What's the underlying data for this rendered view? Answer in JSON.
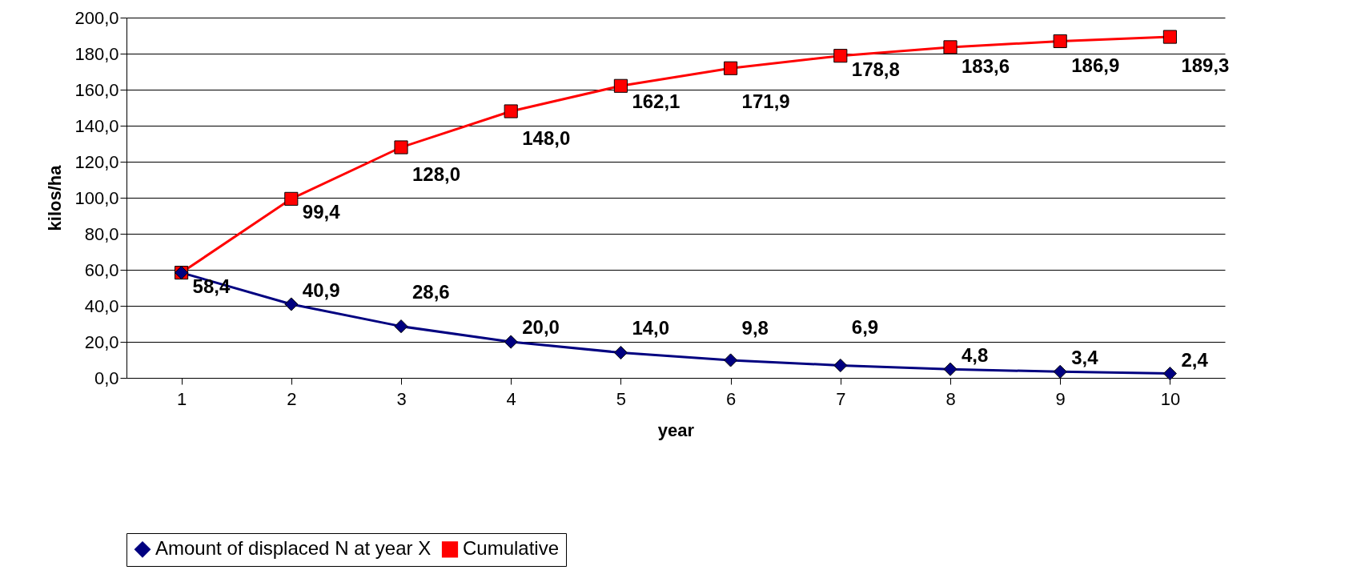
{
  "chart_data": {
    "type": "line",
    "xlabel": "year",
    "ylabel": "kilos/ha",
    "categories": [
      "1",
      "2",
      "3",
      "4",
      "5",
      "6",
      "7",
      "8",
      "9",
      "10"
    ],
    "series": [
      {
        "name": "Amount of displaced N at year X",
        "color": "#000080",
        "marker": "diamond",
        "values": [
          58.4,
          40.9,
          28.6,
          20.0,
          14.0,
          9.8,
          6.9,
          4.8,
          3.4,
          2.4
        ],
        "value_labels": [
          null,
          "40,9",
          "28,6",
          "20,0",
          "14,0",
          "9,8",
          "6,9",
          "4,8",
          "3,4",
          "2,4"
        ]
      },
      {
        "name": "Cumulative",
        "color": "#ff0000",
        "marker": "square",
        "values": [
          58.4,
          99.4,
          128.0,
          148.0,
          162.1,
          171.9,
          178.8,
          183.6,
          186.9,
          189.3
        ],
        "value_labels": [
          "58,4",
          "99,4",
          "128,0",
          "148,0",
          "162,1",
          "171,9",
          "178,8",
          "183,6",
          "186,9",
          "189,3"
        ]
      }
    ],
    "ylim": [
      0,
      200
    ],
    "yticks": [
      {
        "value": 0,
        "label": "0,0"
      },
      {
        "value": 20,
        "label": "20,0"
      },
      {
        "value": 40,
        "label": "40,0"
      },
      {
        "value": 60,
        "label": "60,0"
      },
      {
        "value": 80,
        "label": "80,0"
      },
      {
        "value": 100,
        "label": "100,0"
      },
      {
        "value": 120,
        "label": "120,0"
      },
      {
        "value": 140,
        "label": "140,0"
      },
      {
        "value": 160,
        "label": "160,0"
      },
      {
        "value": 180,
        "label": "180,0"
      },
      {
        "value": 200,
        "label": "200,0"
      }
    ],
    "grid": "y",
    "legend": "bottom",
    "line_style": "solid"
  }
}
